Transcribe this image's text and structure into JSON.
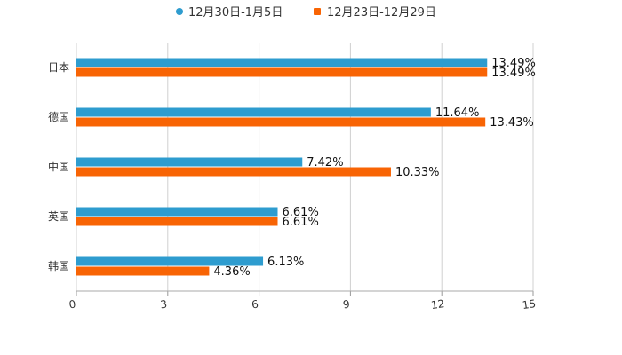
{
  "chart_data": {
    "type": "bar",
    "orientation": "horizontal",
    "categories": [
      "日本",
      "德国",
      "中国",
      "英国",
      "韩国"
    ],
    "series": [
      {
        "name": "12月30日-1月5日",
        "color": "#2e9ccf",
        "values": [
          13.49,
          11.64,
          7.42,
          6.61,
          6.13
        ],
        "labels": [
          "13.49%",
          "11.64%",
          "7.42%",
          "6.61%",
          "6.13%"
        ]
      },
      {
        "name": "12月23日-12月29日",
        "color": "#f86404",
        "values": [
          13.49,
          13.43,
          10.33,
          6.61,
          4.36
        ],
        "labels": [
          "13.49%",
          "13.43%",
          "10.33%",
          "6.61%",
          "4.36%"
        ]
      }
    ],
    "x_ticks": [
      "0",
      "3",
      "6",
      "9",
      "12",
      "15"
    ],
    "xlim": [
      0,
      15
    ],
    "title": "",
    "xlabel": "",
    "ylabel": "",
    "grid": true,
    "legend_position": "top-center"
  }
}
